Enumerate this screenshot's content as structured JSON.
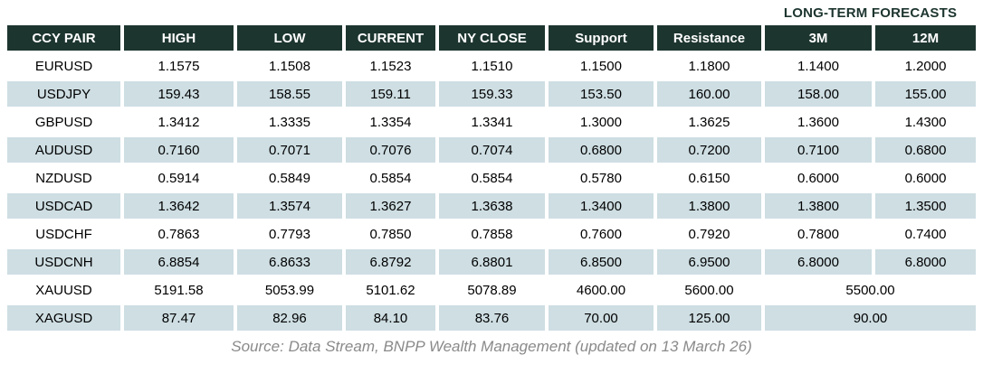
{
  "title": "LONG-TERM FORECASTS",
  "table": {
    "columns": {
      "pair": "CCY PAIR",
      "high": "HIGH",
      "low": "LOW",
      "current": "CURRENT",
      "ny_close": "NY CLOSE",
      "support": "Support",
      "resistance": "Resistance",
      "m3": "3M",
      "m12": "12M"
    },
    "rows": [
      {
        "pair": "EURUSD",
        "high": "1.1575",
        "low": "1.1508",
        "current": "1.1523",
        "ny_close": "1.1510",
        "support": "1.1500",
        "resistance": "1.1800",
        "m3": "1.1400",
        "m12": "1.2000"
      },
      {
        "pair": "USDJPY",
        "high": "159.43",
        "low": "158.55",
        "current": "159.11",
        "ny_close": "159.33",
        "support": "153.50",
        "resistance": "160.00",
        "m3": "158.00",
        "m12": "155.00"
      },
      {
        "pair": "GBPUSD",
        "high": "1.3412",
        "low": "1.3335",
        "current": "1.3354",
        "ny_close": "1.3341",
        "support": "1.3000",
        "resistance": "1.3625",
        "m3": "1.3600",
        "m12": "1.4300"
      },
      {
        "pair": "AUDUSD",
        "high": "0.7160",
        "low": "0.7071",
        "current": "0.7076",
        "ny_close": "0.7074",
        "support": "0.6800",
        "resistance": "0.7200",
        "m3": "0.7100",
        "m12": "0.6800"
      },
      {
        "pair": "NZDUSD",
        "high": "0.5914",
        "low": "0.5849",
        "current": "0.5854",
        "ny_close": "0.5854",
        "support": "0.5780",
        "resistance": "0.6150",
        "m3": "0.6000",
        "m12": "0.6000"
      },
      {
        "pair": "USDCAD",
        "high": "1.3642",
        "low": "1.3574",
        "current": "1.3627",
        "ny_close": "1.3638",
        "support": "1.3400",
        "resistance": "1.3800",
        "m3": "1.3800",
        "m12": "1.3500"
      },
      {
        "pair": "USDCHF",
        "high": "0.7863",
        "low": "0.7793",
        "current": "0.7850",
        "ny_close": "0.7858",
        "support": "0.7600",
        "resistance": "0.7920",
        "m3": "0.7800",
        "m12": "0.7400"
      },
      {
        "pair": "USDCNH",
        "high": "6.8854",
        "low": "6.8633",
        "current": "6.8792",
        "ny_close": "6.8801",
        "support": "6.8500",
        "resistance": "6.9500",
        "m3": "6.8000",
        "m12": "6.8000"
      },
      {
        "pair": "XAUUSD",
        "high": "5191.58",
        "low": "5053.99",
        "current": "5101.62",
        "ny_close": "5078.89",
        "support": "4600.00",
        "resistance": "5600.00",
        "forecast_merged": "5500.00"
      },
      {
        "pair": "XAGUSD",
        "high": "87.47",
        "low": "82.96",
        "current": "84.10",
        "ny_close": "83.76",
        "support": "70.00",
        "resistance": "125.00",
        "forecast_merged": "90.00"
      }
    ]
  },
  "footer": "Source: Data Stream, BNPP Wealth Management (updated on 13 March 26)",
  "colors": {
    "header_bg": "#1d352f",
    "header_text": "#ffffff",
    "alt_row_bg": "#cedee3",
    "title_text": "#1d352f",
    "footer_text": "#8a8a8a"
  }
}
